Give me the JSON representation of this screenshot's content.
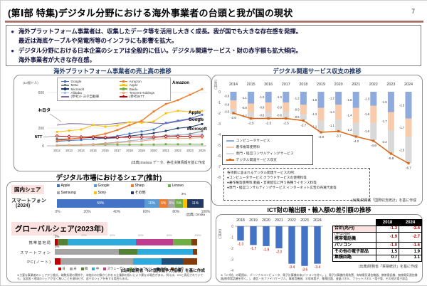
{
  "page": {
    "title": "(第Ⅰ部 特集)デジタル分野における海外事業者の台頭と我が国の現状",
    "page_number": "7"
  },
  "summary_bullets": [
    {
      "bullet": "●",
      "text": "海外プラットフォーム事業者は、収集したデータ等を活用し大きく成長。我が国でも大きな存在感を発揮。"
    },
    {
      "bullet": "",
      "text": "最近は海底ケーブルや発電所等のインフラにも影響を拡大。"
    },
    {
      "bullet": "●",
      "text": "デジタル分野における日本企業のシェアは全般的に低い。デジタル関連サービス・財の赤字額も拡大傾向。"
    },
    {
      "bullet": "",
      "text": "海外事業者が大きな存在感。"
    }
  ],
  "sections": {
    "platform": {
      "title": "海外プラットフォーム事業者の売上高の推移"
    },
    "services": {
      "title": "デジタル関連サービス収支の推移"
    },
    "market_share": {
      "title": "デジタル市場におけるシェア(推計)"
    },
    "ict": {
      "title": "ICT財の輸出額・輸入額の差引額の推移"
    }
  },
  "chart_data": [
    {
      "id": "platform_revenue",
      "type": "line",
      "title": "海外プラットフォーム事業者の売上高の推移",
      "unit": "(10億ドル)",
      "x": [
        2012,
        2013,
        2014,
        2015,
        2016,
        2017,
        2018,
        2019,
        2020,
        2021,
        2022,
        2023,
        2024
      ],
      "ylim": [
        0,
        700
      ],
      "yticks": [
        0,
        200,
        400,
        600
      ],
      "series": [
        {
          "name": "Google",
          "color": "#4472c4",
          "marker": "square",
          "values": [
            50,
            60,
            66,
            75,
            90,
            111,
            137,
            162,
            183,
            258,
            283,
            307,
            350
          ]
        },
        {
          "name": "Meta",
          "color": "#808080",
          "marker": "square",
          "values": [
            5,
            8,
            12,
            18,
            28,
            41,
            56,
            71,
            86,
            118,
            117,
            135,
            164
          ]
        },
        {
          "name": "Microsoft",
          "color": "#203864",
          "marker": "square",
          "values": [
            74,
            78,
            87,
            94,
            85,
            90,
            110,
            126,
            143,
            168,
            198,
            212,
            245
          ]
        },
        {
          "name": "Alibaba",
          "color": "#9dc3e6",
          "marker": "square",
          "values": [
            5,
            8,
            13,
            15,
            23,
            40,
            56,
            72,
            92,
            109,
            126,
            126,
            130
          ]
        },
        {
          "name": "(参考)トヨタ自動車",
          "color": "#8064a2",
          "marker": "none",
          "values": [
            233,
            250,
            248,
            236,
            237,
            254,
            265,
            272,
            256,
            250,
            274,
            300,
            310
          ]
        },
        {
          "name": "Amazon",
          "color": "#ed7d31",
          "marker": "square",
          "values": [
            61,
            74,
            89,
            107,
            136,
            178,
            233,
            281,
            386,
            470,
            514,
            575,
            638
          ]
        },
        {
          "name": "Apple",
          "color": "#ffc000",
          "marker": "square",
          "values": [
            157,
            171,
            183,
            234,
            216,
            229,
            266,
            260,
            275,
            366,
            394,
            383,
            391
          ]
        },
        {
          "name": "Baidu",
          "color": "#70ad47",
          "marker": "square",
          "values": [
            5,
            8,
            10,
            13,
            13,
            15,
            15,
            15,
            16,
            19,
            18,
            19,
            18
          ]
        },
        {
          "name": "Tencent Holdings",
          "color": "#f1a983",
          "marker": "square",
          "values": [
            8,
            10,
            13,
            16,
            22,
            35,
            45,
            54,
            70,
            86,
            82,
            86,
            92
          ]
        },
        {
          "name": "(参考)NTT",
          "color": "#c00000",
          "marker": "diamond",
          "values": [
            110,
            105,
            100,
            98,
            96,
            95,
            97,
            98,
            100,
            104,
            106,
            108,
            110
          ]
        }
      ],
      "legend_order": [
        "Google",
        "Meta",
        "Microsoft",
        "Alibaba",
        "(参考)トヨタ自動車",
        "Amazon",
        "Apple",
        "Baidu",
        "Tencent Holdings",
        "(参考)NTT"
      ],
      "annotations": [
        {
          "text": "Amazon"
        },
        {
          "text": "Apple"
        },
        {
          "text": "Google"
        },
        {
          "text": "Microsoft"
        },
        {
          "text": "トヨタ"
        },
        {
          "text": "NTT"
        }
      ],
      "source": "(出典)Statista データ、各社決算情報を基に作成"
    },
    {
      "id": "digital_services_balance",
      "type": "stacked-bar-line",
      "title": "デジタル関連サービス収支の推移",
      "unit": "(兆円)",
      "x": [
        2014,
        2015,
        2016,
        2017,
        2018,
        2019,
        2020,
        2021,
        2022,
        2023,
        2024
      ],
      "ylim": [
        -8,
        0
      ],
      "yticks": [
        0,
        -1,
        -2,
        -3,
        -4,
        -5,
        -6,
        -7,
        -8
      ],
      "series": [
        {
          "name": "コンピュータサービス",
          "color": "#8faadc",
          "values": [
            -0.8,
            -1.1,
            -1.0,
            -1.0,
            -1.2,
            -1.5,
            -1.2,
            -1.5,
            -1.3,
            -1.9,
            -2.5
          ]
        },
        {
          "name": "著作権等使用料",
          "color": "#f8cbad",
          "values": [
            -0.8,
            -0.8,
            -0.9,
            -0.9,
            -0.9,
            -1.2,
            -1.4,
            -1.4,
            -1.6,
            -1.7,
            -1.7
          ]
        },
        {
          "name": "専門・経営コンサルティングサービス",
          "color": "#d9d9d9",
          "values": [
            -0.5,
            -0.7,
            -0.6,
            -0.6,
            -0.5,
            -1.1,
            -1.1,
            -1.3,
            -1.6,
            -2.2,
            -2.5
          ]
        }
      ],
      "line": {
        "name": "デジタル関連サービス収支",
        "color": "#d86613",
        "values": [
          -2.0,
          -2.5,
          -2.5,
          -2.5,
          -2.7,
          -3.8,
          -3.7,
          -4.2,
          -4.6,
          -5.8,
          -6.7
        ]
      },
      "notes": {
        "title": "各項目に含まれるデジタル関連サービスの例:",
        "items": [
          "●コンピュータサービス:クラウドサービスの使用料等",
          "●著作権等使用料:動画・音楽配信に伴う各種ライセンス料等",
          "●専門・経営コンサルティングサービス:インターネット広告の売買代金等"
        ]
      },
      "source": "(出典)財務省「国際収支統計」を基に作成"
    },
    {
      "id": "domestic_share_smartphone",
      "type": "stacked-hbar",
      "badge": "国内シェア",
      "row_label": "スマートフォン",
      "row_sublabel": "(2024)",
      "segments": [
        {
          "name": "Apple",
          "color": "#4472c4",
          "value": 59,
          "label": "59%"
        },
        {
          "name": "Google",
          "color": "#5b9bd5",
          "value": 10,
          "label": "10%"
        },
        {
          "name": "Sharp",
          "color": "#ed7d31",
          "value": 6,
          "label": "6%"
        },
        {
          "name": "Samsung",
          "color": "#a5a5a5",
          "value": 5,
          "label": "5%"
        },
        {
          "name": "Lenovo",
          "color": "#70ad47",
          "value": 5,
          "label": "5%"
        },
        {
          "name": "Sony",
          "color": "#ffc000",
          "value": 3,
          "label": "3%",
          "callout": true
        },
        {
          "name": "その他",
          "color": "#1f3864",
          "value": 11,
          "label": "11%"
        }
      ],
      "legend_row1": [
        "Apple",
        "Google",
        "Sharp",
        "Lenovo"
      ],
      "legend_row2": [
        "Samsung",
        "Sony",
        "その他"
      ],
      "axis": [
        "0%",
        "20%",
        "40%",
        "60%",
        "80%",
        "100%"
      ],
      "source": "(出典) Omdia"
    },
    {
      "id": "global_share",
      "type": "stacked-hbar-multi",
      "badge": "グローバルシェア(2023年)",
      "axis": [
        "0%",
        "20%",
        "40%",
        "60%",
        "80%",
        "100%"
      ],
      "countries": [
        {
          "name": "日",
          "color": "#c00000"
        },
        {
          "name": "米",
          "color": "#a5a5a5"
        },
        {
          "name": "韓",
          "color": "#538135"
        },
        {
          "name": "中",
          "color": "#2eaadc"
        },
        {
          "name": "スウェーデン",
          "color": "#bf3d8e"
        },
        {
          "name": "フィンランド",
          "color": "#70ad47"
        },
        {
          "name": "台湾",
          "color": "#1f4e79"
        },
        {
          "name": "その他",
          "color": "#843c0c"
        }
      ],
      "rows": [
        {
          "label": "携帯基地局",
          "callout": "2%",
          "values": [
            2,
            0,
            7,
            48,
            26,
            13,
            0,
            4
          ]
        },
        {
          "label": "スマートフォン",
          "callout": "0%",
          "values": [
            0,
            45,
            13,
            39,
            0,
            0,
            0,
            3
          ]
        },
        {
          "label": "PC(ノート)",
          "callout": "",
          "values": [
            4,
            51,
            0,
            20,
            0,
            0,
            15,
            10
          ]
        }
      ],
      "source": "(出典)総務省「IoT国際競争力指標」を基に作成",
      "footnote": "※主要な事業者のシェアから推計。端数処理の関係や、本統計の対象から外れる企業群の扱いにより異なる場合がある。例えば、0%と表記されていても、当該国・地域のシェアが全く無いことを意味せず、若干のシェアを有する場合もある。"
    },
    {
      "id": "ict_trade_balance",
      "type": "bar",
      "title": "ICT財の輸出額・輸入額の差引額の推移",
      "unit": "(兆円)",
      "x": [
        2018,
        2019,
        2020,
        2021,
        2022,
        2023,
        2024
      ],
      "values": [
        -1.3,
        -1.7,
        -1.8,
        -2.0,
        -3.4,
        -3.6,
        -3.4
      ],
      "bar_color": "#4472c4",
      "label_color": "#c00000",
      "ylim": [
        -4.5,
        0
      ],
      "yticks": [
        0,
        -1,
        -2,
        -3,
        -4
      ],
      "table": {
        "columns": [
          "",
          "2018",
          "2024"
        ],
        "rows": [
          {
            "label_lines": [
              "合計(兆円)"
            ],
            "values": [
              "-1.3",
              "-3.4"
            ],
            "red": true,
            "total": true
          },
          {
            "label_lines": [
              "(主な内訳)",
              "携帯電話機"
            ],
            "values": [
              "-1.9",
              "-2.7"
            ],
            "red": true,
            "total": false
          },
          {
            "label_lines": [
              "パソコン"
            ],
            "values": [
              "-1.0",
              "-1.6"
            ],
            "red": true,
            "total": false
          },
          {
            "label_lines": [
              "その他の電子部品"
            ],
            "values": [
              "1.5",
              "1.9"
            ],
            "red": false,
            "total": false
          },
          {
            "label_lines": [
              "集積回路"
            ],
            "values": [
              "0.7",
              "1.1"
            ],
            "red": false,
            "total": false
          }
        ]
      },
      "source": "(出典)財務省「貿易統計」を基に作成",
      "footnote": "※「ICT財」の範囲は、パーソナルコンピュータ、電子計算機本体(パソコンを除く。)、電子計算機附属装置、有線電気通信機器、携帯電話機、無線電気通信機器(携帯電話機を除く。)、通信・光ファイバケーブル、事務用機械、半導体素子、集積回路、液晶パネル、フラットパネル・電子管、その他の電子部品"
    }
  ]
}
